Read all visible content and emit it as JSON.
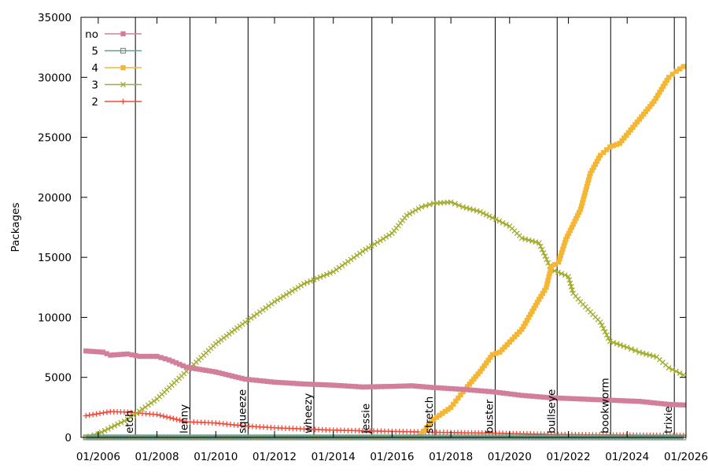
{
  "chart_data": {
    "type": "line",
    "xlabel": "",
    "ylabel": "Packages",
    "xlim": [
      "2005-06-01",
      "2026-01-01"
    ],
    "ylim": [
      0,
      35000
    ],
    "y_ticks": [
      0,
      5000,
      10000,
      15000,
      20000,
      25000,
      30000,
      35000
    ],
    "x_ticks": [
      "2006-01-01",
      "2008-01-01",
      "2010-01-01",
      "2012-01-01",
      "2014-01-01",
      "2016-01-01",
      "2018-01-01",
      "2020-01-01",
      "2022-01-01",
      "2024-01-01",
      "2026-01-01"
    ],
    "x_tick_labels": [
      "01/2006",
      "01/2008",
      "01/2010",
      "01/2012",
      "01/2014",
      "01/2016",
      "01/2018",
      "01/2020",
      "01/2022",
      "01/2024",
      "01/2026"
    ],
    "grid": false,
    "legend": "top-left",
    "releases": [
      {
        "name": "etch",
        "date": "2007-04-08"
      },
      {
        "name": "lenny",
        "date": "2009-02-14"
      },
      {
        "name": "squeeze",
        "date": "2011-02-06"
      },
      {
        "name": "wheezy",
        "date": "2013-05-04"
      },
      {
        "name": "jessie",
        "date": "2015-04-25"
      },
      {
        "name": "stretch",
        "date": "2017-06-17"
      },
      {
        "name": "buster",
        "date": "2019-07-06"
      },
      {
        "name": "bullseye",
        "date": "2021-08-14"
      },
      {
        "name": "bookworm",
        "date": "2023-06-10"
      },
      {
        "name": "trixie",
        "date": "2025-08-09"
      }
    ],
    "series": [
      {
        "name": "no",
        "color": "#d2809a",
        "marker": "filled-square",
        "points": [
          [
            "2005-08-01",
            7200
          ],
          [
            "2006-03-01",
            7100
          ],
          [
            "2006-06-01",
            6850
          ],
          [
            "2007-01-01",
            6950
          ],
          [
            "2007-06-01",
            6750
          ],
          [
            "2008-01-01",
            6750
          ],
          [
            "2008-06-01",
            6450
          ],
          [
            "2009-01-01",
            5850
          ],
          [
            "2010-01-01",
            5450
          ],
          [
            "2011-01-01",
            4850
          ],
          [
            "2012-01-01",
            4600
          ],
          [
            "2013-01-01",
            4450
          ],
          [
            "2014-01-01",
            4350
          ],
          [
            "2015-01-01",
            4200
          ],
          [
            "2016-01-01",
            4250
          ],
          [
            "2016-09-01",
            4300
          ],
          [
            "2017-06-01",
            4150
          ],
          [
            "2018-06-01",
            4000
          ],
          [
            "2019-06-01",
            3800
          ],
          [
            "2020-06-01",
            3500
          ],
          [
            "2021-06-01",
            3300
          ],
          [
            "2022-06-01",
            3200
          ],
          [
            "2023-06-01",
            3100
          ],
          [
            "2024-06-01",
            3000
          ],
          [
            "2025-06-01",
            2750
          ],
          [
            "2025-12-01",
            2700
          ]
        ]
      },
      {
        "name": "5",
        "color": "#6f9a85",
        "marker": "open-square",
        "points": [
          [
            "2005-08-01",
            0
          ],
          [
            "2025-12-01",
            0
          ]
        ]
      },
      {
        "name": "4",
        "color": "#f5b633",
        "marker": "filled-square",
        "points": [
          [
            "2005-08-01",
            0
          ],
          [
            "2016-12-01",
            0
          ],
          [
            "2017-03-01",
            800
          ],
          [
            "2017-06-01",
            1500
          ],
          [
            "2018-01-01",
            2500
          ],
          [
            "2018-06-01",
            3800
          ],
          [
            "2019-01-01",
            5500
          ],
          [
            "2019-06-01",
            6900
          ],
          [
            "2019-09-01",
            7100
          ],
          [
            "2020-06-01",
            9000
          ],
          [
            "2021-01-01",
            11500
          ],
          [
            "2021-04-01",
            12500
          ],
          [
            "2021-06-01",
            14200
          ],
          [
            "2021-09-01",
            14600
          ],
          [
            "2021-12-01",
            16500
          ],
          [
            "2022-06-01",
            19000
          ],
          [
            "2022-10-01",
            22000
          ],
          [
            "2023-02-01",
            23500
          ],
          [
            "2023-06-01",
            24200
          ],
          [
            "2023-10-01",
            24500
          ],
          [
            "2024-06-01",
            26500
          ],
          [
            "2024-12-01",
            28000
          ],
          [
            "2025-06-01",
            30000
          ],
          [
            "2025-09-01",
            30500
          ],
          [
            "2025-12-01",
            30900
          ]
        ]
      },
      {
        "name": "3",
        "color": "#a4ad2d",
        "marker": "x",
        "points": [
          [
            "2005-08-01",
            0
          ],
          [
            "2006-01-01",
            300
          ],
          [
            "2007-01-01",
            1500
          ],
          [
            "2008-01-01",
            3200
          ],
          [
            "2009-01-01",
            5500
          ],
          [
            "2010-01-01",
            7800
          ],
          [
            "2011-01-01",
            9600
          ],
          [
            "2012-01-01",
            11300
          ],
          [
            "2013-01-01",
            12800
          ],
          [
            "2014-01-01",
            13800
          ],
          [
            "2015-01-01",
            15500
          ],
          [
            "2016-01-01",
            17000
          ],
          [
            "2016-07-01",
            18500
          ],
          [
            "2017-01-01",
            19200
          ],
          [
            "2017-06-01",
            19500
          ],
          [
            "2018-01-01",
            19600
          ],
          [
            "2018-06-01",
            19200
          ],
          [
            "2019-01-01",
            18800
          ],
          [
            "2019-06-01",
            18300
          ],
          [
            "2020-01-01",
            17600
          ],
          [
            "2020-06-01",
            16600
          ],
          [
            "2021-01-01",
            16200
          ],
          [
            "2021-06-01",
            14000
          ],
          [
            "2022-01-01",
            13400
          ],
          [
            "2022-03-01",
            12000
          ],
          [
            "2022-06-01",
            11300
          ],
          [
            "2023-02-01",
            9600
          ],
          [
            "2023-06-01",
            8000
          ],
          [
            "2024-01-01",
            7500
          ],
          [
            "2024-06-01",
            7100
          ],
          [
            "2025-01-01",
            6700
          ],
          [
            "2025-06-01",
            5800
          ],
          [
            "2025-12-01",
            5200
          ]
        ]
      },
      {
        "name": "2",
        "color": "#f24a39",
        "marker": "plus",
        "points": [
          [
            "2005-08-01",
            1800
          ],
          [
            "2006-06-01",
            2150
          ],
          [
            "2007-01-01",
            2100
          ],
          [
            "2008-01-01",
            1900
          ],
          [
            "2009-01-01",
            1300
          ],
          [
            "2010-01-01",
            1200
          ],
          [
            "2011-01-01",
            950
          ],
          [
            "2012-01-01",
            800
          ],
          [
            "2013-01-01",
            700
          ],
          [
            "2014-01-01",
            600
          ],
          [
            "2015-01-01",
            550
          ],
          [
            "2016-01-01",
            500
          ],
          [
            "2017-01-01",
            450
          ],
          [
            "2018-01-01",
            400
          ],
          [
            "2019-06-01",
            350
          ],
          [
            "2021-06-01",
            250
          ],
          [
            "2023-06-01",
            200
          ],
          [
            "2025-12-01",
            150
          ]
        ]
      }
    ]
  }
}
